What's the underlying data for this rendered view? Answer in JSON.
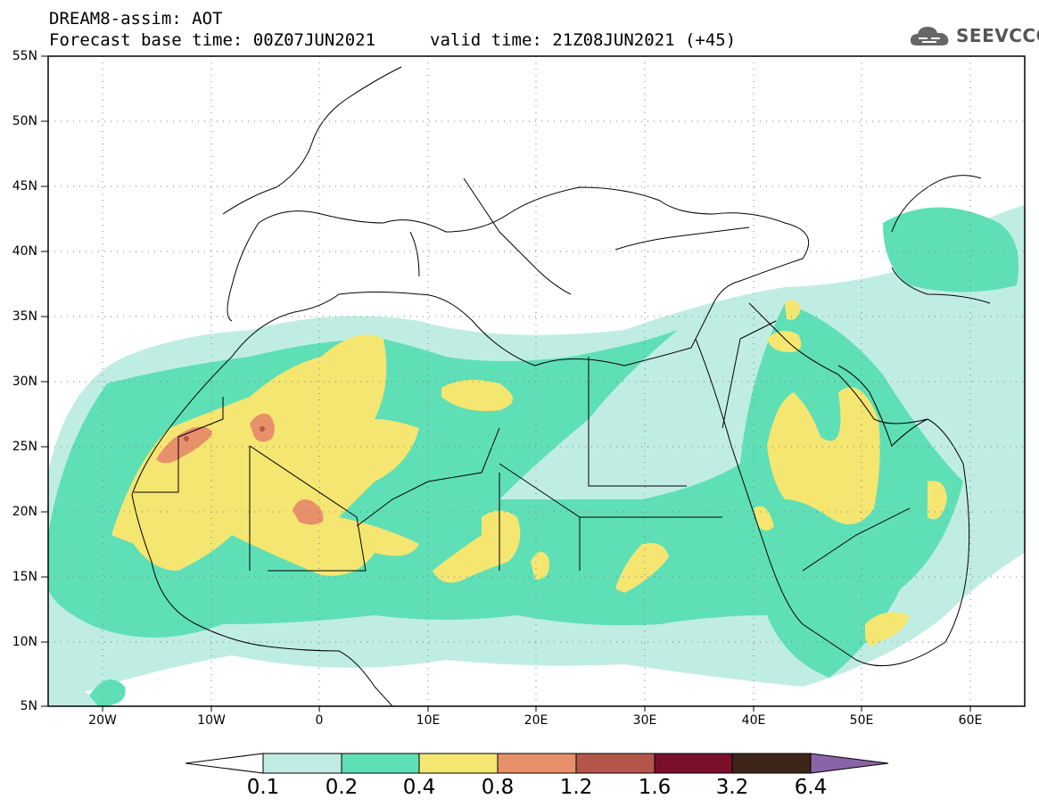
{
  "header": {
    "line1": "DREAM8-assim: AOT",
    "line2": "Forecast base time: 00Z07JUN2021",
    "line2b": "valid time: 21Z08JUN2021 (+45)",
    "logo_text": "SEEVCCC",
    "logo_icon": "cloud-icon"
  },
  "map": {
    "lon_range": [
      -25,
      65
    ],
    "lat_range": [
      5,
      55
    ],
    "lat_ticks": [
      "55N",
      "50N",
      "45N",
      "40N",
      "35N",
      "30N",
      "25N",
      "20N",
      "15N",
      "10N",
      "5N"
    ],
    "lon_ticks": [
      "20W",
      "10W",
      "0",
      "10E",
      "20E",
      "30E",
      "40E",
      "50E",
      "60E"
    ],
    "grid": "dotted"
  },
  "colorbar": {
    "levels": [
      "0.1",
      "0.2",
      "0.4",
      "0.8",
      "1.2",
      "1.6",
      "3.2",
      "6.4"
    ],
    "colors": [
      "#ffffff",
      "#c0ede3",
      "#5fdfb6",
      "#f5e672",
      "#e8906a",
      "#b4574a",
      "#7a0f2c",
      "#3e2419",
      "#8a64a8"
    ]
  }
}
